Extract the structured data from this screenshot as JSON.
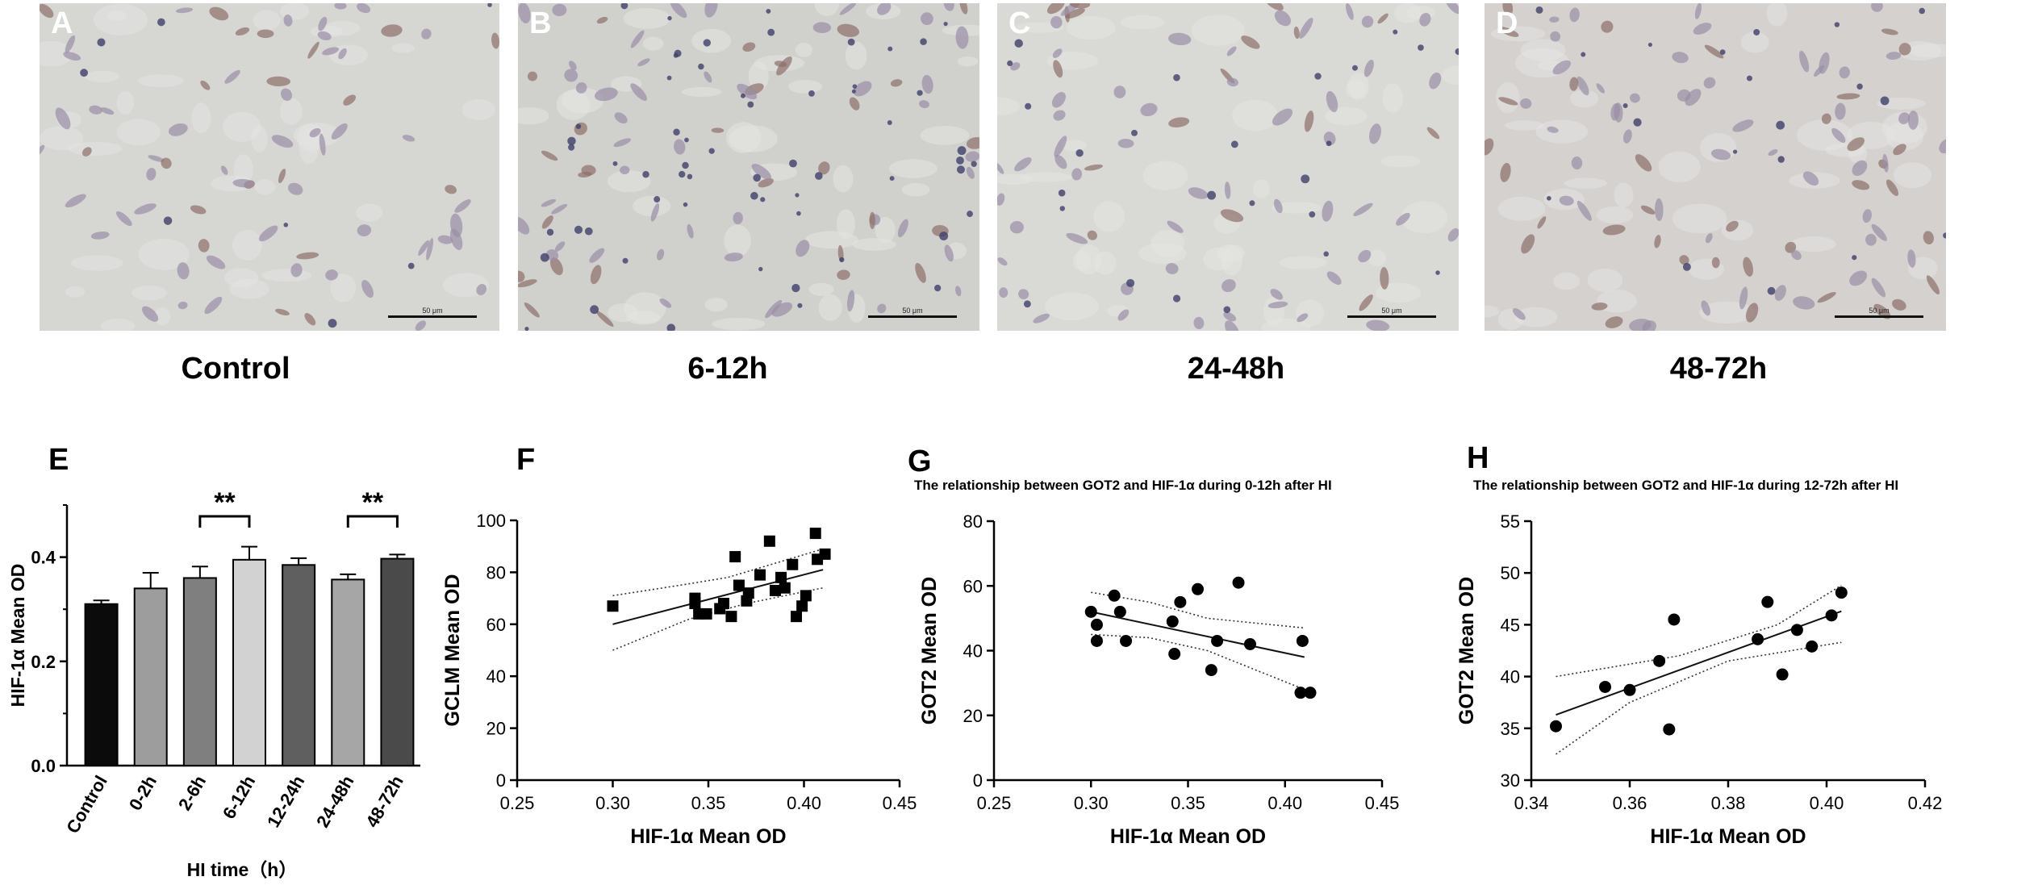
{
  "photos": [
    {
      "letter": "A",
      "caption": "Control",
      "scale": "50 μm"
    },
    {
      "letter": "B",
      "caption": "6-12h",
      "scale": "50 μm"
    },
    {
      "letter": "C",
      "caption": "24-48h",
      "scale": "50 μm"
    },
    {
      "letter": "D",
      "caption": "48-72h",
      "scale": "50 μm"
    }
  ],
  "chart_data": [
    {
      "panel": "E",
      "type": "bar",
      "categories": [
        "Control",
        "0-2h",
        "2-6h",
        "6-12h",
        "12-24h",
        "24-48h",
        "48-72h"
      ],
      "values": [
        0.31,
        0.34,
        0.36,
        0.395,
        0.385,
        0.357,
        0.397
      ],
      "errors": [
        0.007,
        0.03,
        0.022,
        0.025,
        0.013,
        0.01,
        0.008
      ],
      "bar_colors": [
        "#0b0b0b",
        "#9d9d9d",
        "#7f7f7f",
        "#d2d2d2",
        "#5f5f5f",
        "#a6a6a6",
        "#4a4a4a"
      ],
      "ylabel": "HIF-1α Mean OD",
      "xlabel": "HI time（h）",
      "ylim": [
        0,
        0.5
      ],
      "yticks": [
        "0.0",
        "0.2",
        "0.4"
      ],
      "significance": [
        {
          "from": "2-6h",
          "to": "6-12h",
          "label": "**"
        },
        {
          "from": "24-48h",
          "to": "48-72h",
          "label": "**"
        }
      ]
    },
    {
      "panel": "F",
      "type": "scatter",
      "title": "",
      "xlabel": "HIF-1α Mean OD",
      "ylabel": "GCLM Mean OD",
      "xlim": [
        0.25,
        0.45
      ],
      "ylim": [
        0,
        100
      ],
      "xticks": [
        "0.25",
        "0.30",
        "0.35",
        "0.40",
        "0.45"
      ],
      "yticks": [
        "0",
        "20",
        "40",
        "60",
        "80",
        "100"
      ],
      "marker": "square",
      "points": [
        [
          0.3,
          67
        ],
        [
          0.343,
          68
        ],
        [
          0.343,
          70
        ],
        [
          0.345,
          64
        ],
        [
          0.349,
          64
        ],
        [
          0.356,
          66
        ],
        [
          0.358,
          68
        ],
        [
          0.362,
          63
        ],
        [
          0.364,
          86
        ],
        [
          0.366,
          75
        ],
        [
          0.37,
          69
        ],
        [
          0.371,
          72
        ],
        [
          0.377,
          79
        ],
        [
          0.382,
          92
        ],
        [
          0.385,
          73
        ],
        [
          0.388,
          78
        ],
        [
          0.39,
          74
        ],
        [
          0.394,
          83
        ],
        [
          0.396,
          63
        ],
        [
          0.399,
          67
        ],
        [
          0.401,
          71
        ],
        [
          0.406,
          95
        ],
        [
          0.407,
          85
        ],
        [
          0.411,
          87
        ]
      ],
      "fit": {
        "x": [
          0.3,
          0.41
        ],
        "y": [
          60,
          81
        ]
      },
      "ci_upper": {
        "x": [
          0.3,
          0.335,
          0.36,
          0.41
        ],
        "y": [
          71,
          75,
          78,
          89
        ]
      },
      "ci_lower": {
        "x": [
          0.3,
          0.34,
          0.37,
          0.41
        ],
        "y": [
          50,
          62,
          68,
          74
        ]
      }
    },
    {
      "panel": "G",
      "type": "scatter",
      "title": "The relationship between GOT2 and HIF-1α during 0-12h after HI",
      "xlabel": "HIF-1α Mean OD",
      "ylabel": "GOT2 Mean OD",
      "xlim": [
        0.25,
        0.45
      ],
      "ylim": [
        0,
        80
      ],
      "xticks": [
        "0.25",
        "0.30",
        "0.35",
        "0.40",
        "0.45"
      ],
      "yticks": [
        "0",
        "20",
        "40",
        "60",
        "80"
      ],
      "marker": "circle",
      "points": [
        [
          0.3,
          52
        ],
        [
          0.303,
          48
        ],
        [
          0.303,
          43
        ],
        [
          0.312,
          57
        ],
        [
          0.315,
          52
        ],
        [
          0.318,
          43
        ],
        [
          0.342,
          49
        ],
        [
          0.343,
          39
        ],
        [
          0.346,
          55
        ],
        [
          0.355,
          59
        ],
        [
          0.362,
          34
        ],
        [
          0.365,
          43
        ],
        [
          0.376,
          61
        ],
        [
          0.382,
          42
        ],
        [
          0.408,
          27
        ],
        [
          0.409,
          43
        ],
        [
          0.413,
          27
        ]
      ],
      "fit": {
        "x": [
          0.3,
          0.41
        ],
        "y": [
          52,
          38
        ]
      },
      "ci_upper": {
        "x": [
          0.3,
          0.33,
          0.36,
          0.41
        ],
        "y": [
          58,
          55,
          50,
          47
        ]
      },
      "ci_lower": {
        "x": [
          0.3,
          0.33,
          0.36,
          0.41
        ],
        "y": [
          45,
          44,
          40,
          28
        ]
      }
    },
    {
      "panel": "H",
      "type": "scatter",
      "title": "The relationship between GOT2 and HIF-1α during 12-72h after HI",
      "xlabel": "HIF-1α Mean OD",
      "ylabel": "GOT2 Mean OD",
      "xlim": [
        0.34,
        0.42
      ],
      "ylim": [
        30,
        55
      ],
      "xticks": [
        "0.34",
        "0.36",
        "0.38",
        "0.40",
        "0.42"
      ],
      "yticks": [
        "30",
        "35",
        "40",
        "45",
        "50",
        "55"
      ],
      "marker": "circle",
      "points": [
        [
          0.345,
          35.2
        ],
        [
          0.355,
          39
        ],
        [
          0.36,
          38.7
        ],
        [
          0.366,
          41.5
        ],
        [
          0.368,
          34.9
        ],
        [
          0.369,
          45.5
        ],
        [
          0.386,
          43.6
        ],
        [
          0.388,
          47.2
        ],
        [
          0.391,
          40.2
        ],
        [
          0.394,
          44.5
        ],
        [
          0.397,
          42.9
        ],
        [
          0.401,
          45.9
        ],
        [
          0.403,
          48.1
        ]
      ],
      "fit": {
        "x": [
          0.345,
          0.403
        ],
        "y": [
          36.3,
          46.3
        ]
      },
      "ci_upper": {
        "x": [
          0.345,
          0.37,
          0.39,
          0.403
        ],
        "y": [
          40,
          42,
          45,
          48.8
        ]
      },
      "ci_lower": {
        "x": [
          0.345,
          0.36,
          0.38,
          0.403
        ],
        "y": [
          32.5,
          37.5,
          41.5,
          43.3
        ]
      }
    }
  ]
}
